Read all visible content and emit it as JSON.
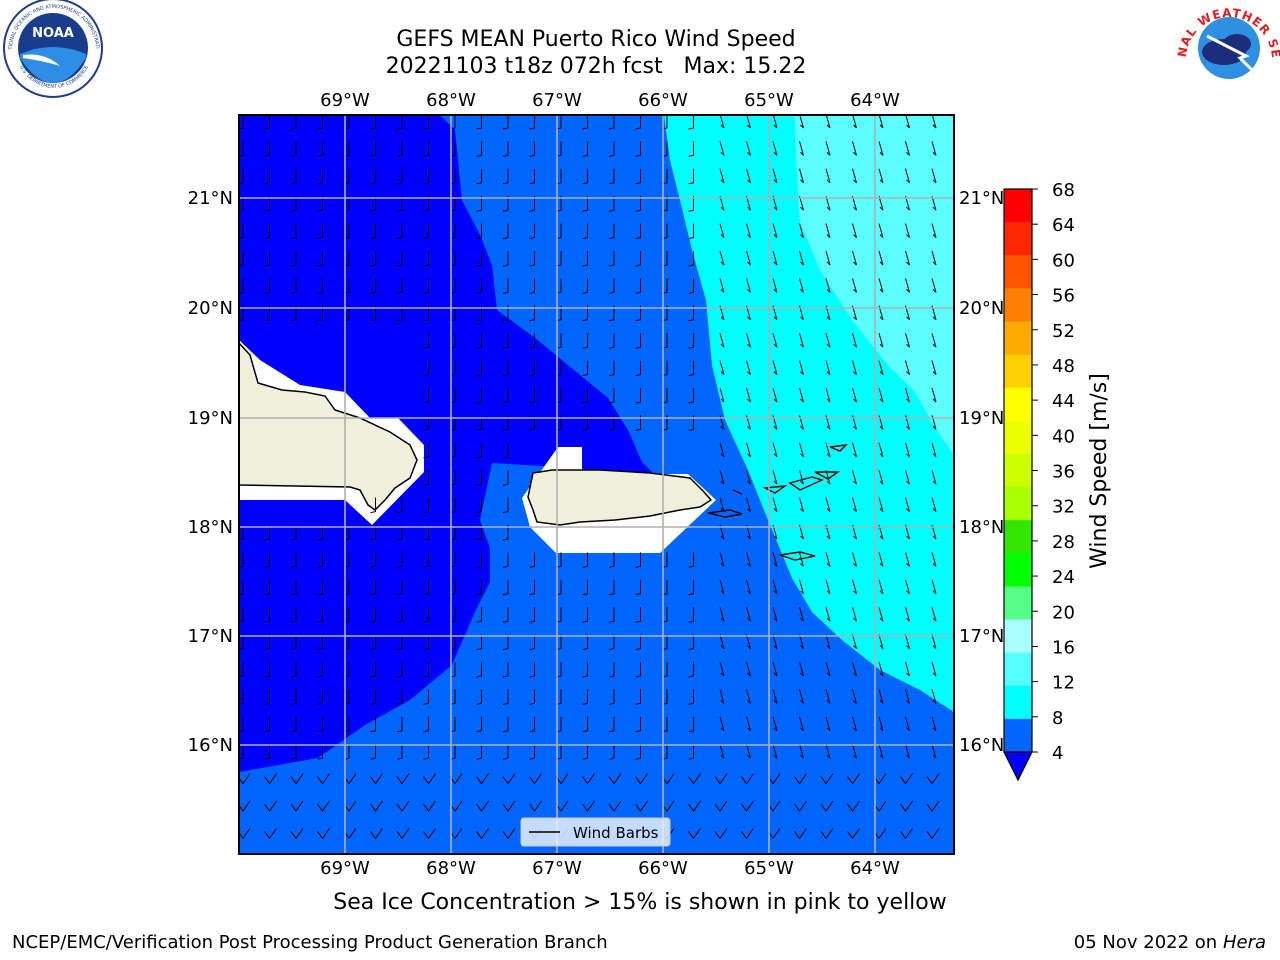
{
  "title": {
    "line1": "GEFS MEAN Puerto Rico Wind Speed",
    "line2": "20221103 t18z 072h fcst   Max: 15.22"
  },
  "map": {
    "lon_labels": [
      "69°W",
      "68°W",
      "67°W",
      "66°W",
      "65°W",
      "64°W"
    ],
    "lat_labels": [
      "21°N",
      "20°N",
      "19°N",
      "18°N",
      "17°N",
      "16°N"
    ],
    "legend_label": "Wind Barbs",
    "colors": {
      "speed_4_8": "#0066ff",
      "speed_lt_4": "#0000ff",
      "speed_8_12": "#00ffff",
      "speed_12_16": "#5cffff",
      "land": "#efefdc",
      "masked": "#ffffff"
    }
  },
  "colorbar": {
    "label": "Wind Speed [m/s]",
    "ticks": [
      "68",
      "64",
      "60",
      "56",
      "52",
      "48",
      "44",
      "40",
      "36",
      "32",
      "28",
      "24",
      "20",
      "16",
      "12",
      "8",
      "4"
    ],
    "colors": [
      "#ff0000",
      "#ff2600",
      "#ff5500",
      "#ff8000",
      "#ffaa00",
      "#ffd000",
      "#ffff00",
      "#eeff00",
      "#ccff00",
      "#aaff00",
      "#33e600",
      "#00ff00",
      "#55ff88",
      "#aaffff",
      "#55ffff",
      "#00ffff",
      "#0066ff"
    ],
    "under_color": "#0000ff"
  },
  "caption": "Sea Ice Concentration > 15% is shown in pink to yellow",
  "footer": {
    "left": "NCEP/EMC/Verification Post Processing Product Generation Branch",
    "right_date": "05 Nov 2022 on",
    "right_machine": "Hera"
  },
  "logos": {
    "noaa_text": "NOAA",
    "noaa_ring_top": "NATIONAL OCEANIC AND ATMOSPHERIC ADMINISTRATION",
    "noaa_ring_bottom": "U.S. DEPARTMENT OF COMMERCE",
    "nws_ring": "NATIONAL WEATHER SERVICE"
  }
}
